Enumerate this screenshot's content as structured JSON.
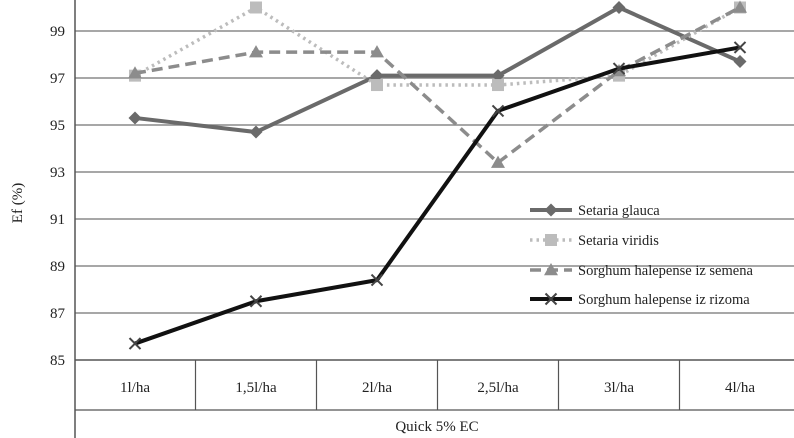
{
  "chart_data": {
    "type": "line",
    "title": "",
    "xlabel": "Quick 5% EC",
    "ylabel": "Ef (%)",
    "categories": [
      "1l/ha",
      "1,5l/ha",
      "2l/ha",
      "2,5l/ha",
      "3l/ha",
      "4l/ha"
    ],
    "ylim": [
      85,
      100
    ],
    "yticks": [
      85,
      87,
      89,
      91,
      93,
      95,
      97,
      99
    ],
    "grid": "horizontal",
    "legend_position": "right",
    "series": [
      {
        "name": "Setaria glauca",
        "values": [
          95.3,
          94.7,
          97.1,
          97.1,
          100,
          97.7
        ],
        "color": "#6a6a6a",
        "dash": "solid",
        "marker": "diamond",
        "width": 4
      },
      {
        "name": "Setaria viridis",
        "values": [
          97.1,
          100,
          96.7,
          96.7,
          97.1,
          100
        ],
        "color": "#bcbcbc",
        "dash": "dotted",
        "marker": "square",
        "width": 3.5
      },
      {
        "name": "Sorghum halepense iz semena",
        "values": [
          97.2,
          98.1,
          98.1,
          93.4,
          97.3,
          100
        ],
        "color": "#8c8c8c",
        "dash": "dashed",
        "marker": "triangle",
        "width": 3.5
      },
      {
        "name": "Sorghum halepense iz rizoma",
        "values": [
          85.7,
          87.5,
          88.4,
          95.6,
          97.4,
          98.3
        ],
        "color": "#111111",
        "dash": "solid",
        "marker": "x",
        "width": 4
      }
    ]
  }
}
